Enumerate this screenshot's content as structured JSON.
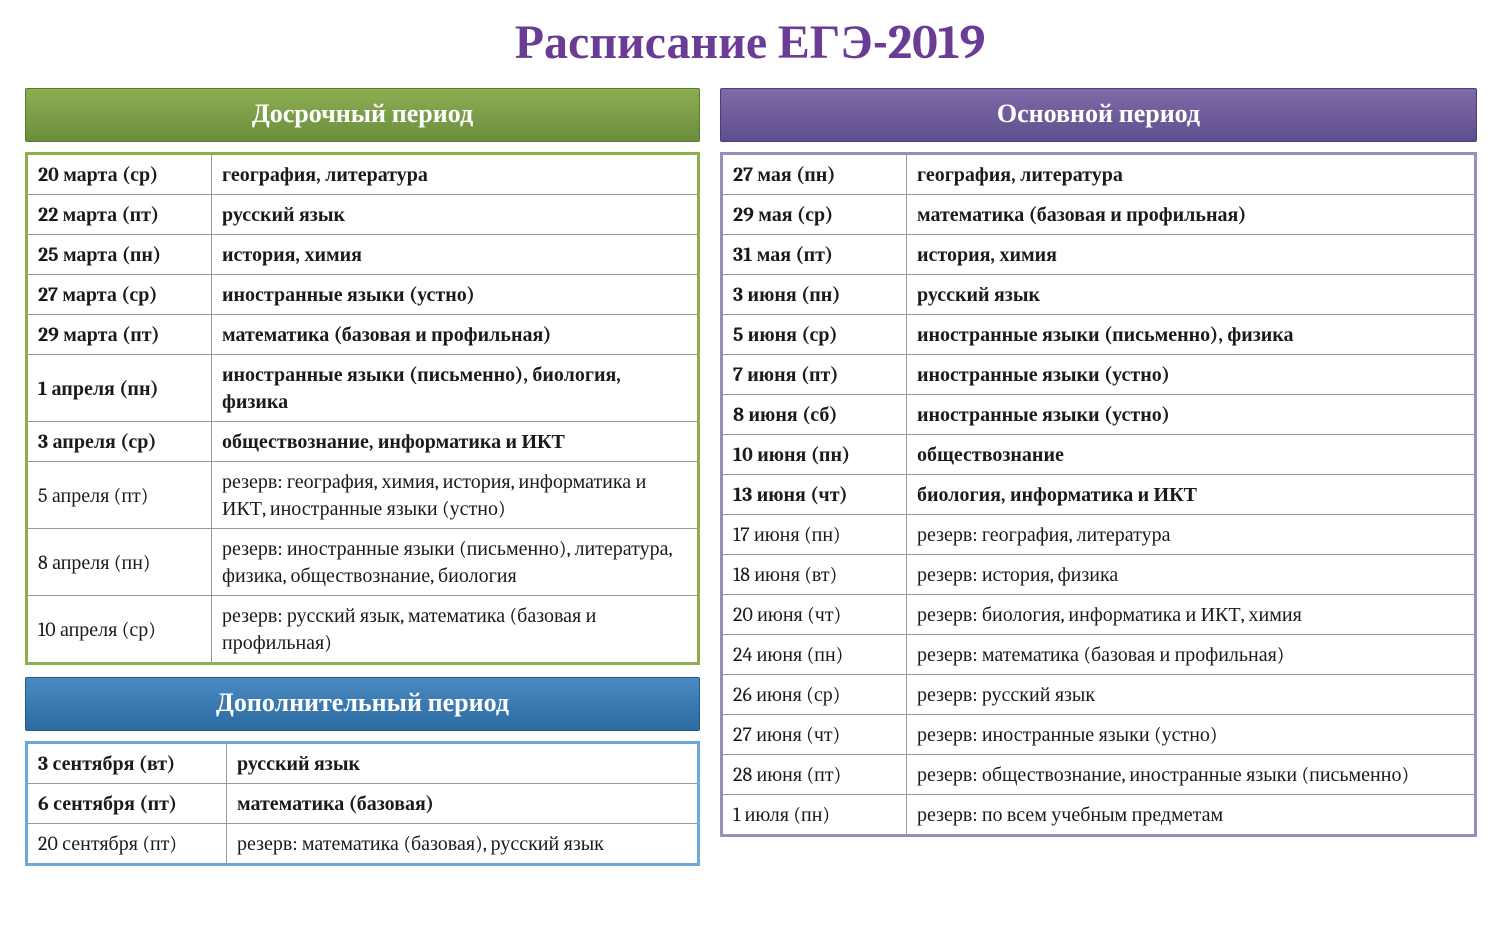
{
  "title": "Расписание ЕГЭ-2019",
  "colors": {
    "title": "#6a3c96",
    "green_bg": "#8db04f",
    "purple_bg": "#9b8cc0",
    "blue_bg": "#6fa8d8",
    "text": "#1a1a1a",
    "white": "#ffffff"
  },
  "periods": {
    "early": {
      "title": "Досрочный период",
      "header_class": "header-green",
      "table_class": "table-green",
      "date_class": "date-cell",
      "rows": [
        {
          "date": "20 марта (ср)",
          "subject": "география, литература",
          "bold": true
        },
        {
          "date": "22 марта (пт)",
          "subject": "русский язык",
          "bold": true
        },
        {
          "date": "25 марта (пн)",
          "subject": "история, химия",
          "bold": true
        },
        {
          "date": "27 марта (ср)",
          "subject": "иностранные языки (устно)",
          "bold": true
        },
        {
          "date": "29 марта (пт)",
          "subject": "математика  (базовая и профильная)",
          "bold": true
        },
        {
          "date": "1 апреля (пн)",
          "subject": "иностранные языки (письменно), биология, физика",
          "bold": true
        },
        {
          "date": "3 апреля (ср)",
          "subject": "обществознание, информатика и ИКТ",
          "bold": true
        },
        {
          "date": "5 апреля (пт)",
          "subject": "резерв: география, химия, история, информатика и ИКТ, иностранные языки (устно)",
          "bold": false
        },
        {
          "date": "8 апреля (пн)",
          "subject": "резерв: иностранные языки (письменно), литература, физика, обществознание, биология",
          "bold": false
        },
        {
          "date": "10 апреля (ср)",
          "subject": "резерв: русский язык, математика (базовая и профильная)",
          "bold": false
        }
      ]
    },
    "main": {
      "title": "Основной период",
      "header_class": "header-purple",
      "table_class": "table-purple",
      "date_class": "date-cell",
      "rows": [
        {
          "date": "27 мая (пн)",
          "subject": "география, литература",
          "bold": true
        },
        {
          "date": "29 мая (ср)",
          "subject": "математика (базовая и профильная)",
          "bold": true
        },
        {
          "date": "31 мая (пт)",
          "subject": "история, химия",
          "bold": true
        },
        {
          "date": "3 июня (пн)",
          "subject": "русский язык",
          "bold": true
        },
        {
          "date": "5 июня (ср)",
          "subject": "иностранные языки (письменно), физика",
          "bold": true
        },
        {
          "date": "7 июня (пт)",
          "subject": "иностранные языки (устно)",
          "bold": true
        },
        {
          "date": "8 июня (сб)",
          "subject": "иностранные языки (устно)",
          "bold": true
        },
        {
          "date": "10 июня (пн)",
          "subject": "обществознание",
          "bold": true
        },
        {
          "date": "13 июня (чт)",
          "subject": "биология, информатика и ИКТ",
          "bold": true
        },
        {
          "date": "17 июня (пн)",
          "subject": "резерв: география, литература",
          "bold": false
        },
        {
          "date": "18 июня (вт)",
          "subject": "резерв: история, физика",
          "bold": false
        },
        {
          "date": "20 июня (чт)",
          "subject": "резерв: биология, информатика и ИКТ, химия",
          "bold": false
        },
        {
          "date": "24 июня (пн)",
          "subject": "резерв: математика (базовая и профильная)",
          "bold": false
        },
        {
          "date": "26 июня (ср)",
          "subject": "резерв: русский язык",
          "bold": false
        },
        {
          "date": "27 июня (чт)",
          "subject": "резерв: иностранные языки (устно)",
          "bold": false
        },
        {
          "date": "28 июня (пт)",
          "subject": "резерв: обществознание, иностранные языки (письменно)",
          "bold": false
        },
        {
          "date": "1 июля (пн)",
          "subject": "резерв: по всем учебным предметам",
          "bold": false
        }
      ]
    },
    "additional": {
      "title": "Дополнительный период",
      "header_class": "header-blue",
      "table_class": "table-blue",
      "date_class": "date-cell-wide",
      "rows": [
        {
          "date": "3 сентября (вт)",
          "subject": "русский язык",
          "bold": true
        },
        {
          "date": "6 сентября (пт)",
          "subject": "математика (базовая)",
          "bold": true
        },
        {
          "date": "20 сентября (пт)",
          "subject": "резерв: математика (базовая), русский язык",
          "bold": false
        }
      ]
    }
  }
}
